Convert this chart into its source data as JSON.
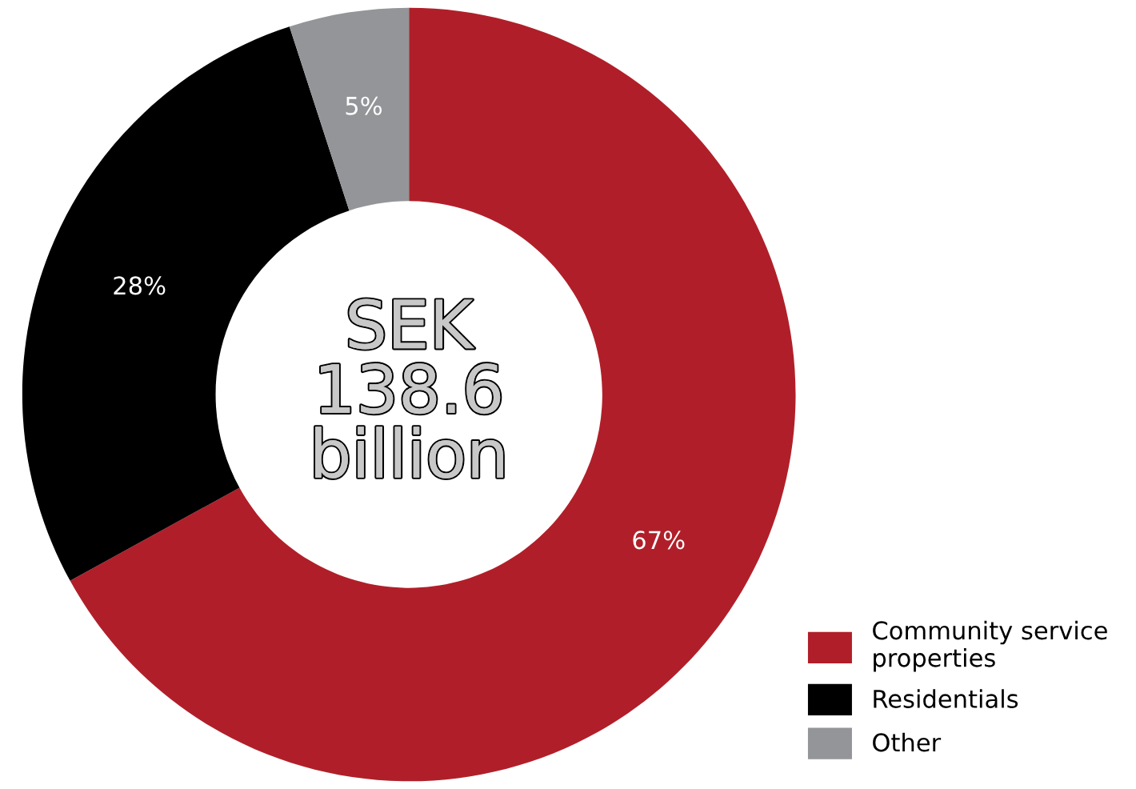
{
  "chart_data": {
    "type": "donut",
    "categories": [
      "Community service properties",
      "Residentials",
      "Other"
    ],
    "values": [
      67,
      28,
      5
    ],
    "colors": [
      "#b01f29",
      "#000000",
      "#939598"
    ],
    "value_labels": [
      "67%",
      "28%",
      "5%"
    ],
    "annotations": [
      "SEK\n138.6\nbillion"
    ],
    "legend": "bottom right"
  }
}
